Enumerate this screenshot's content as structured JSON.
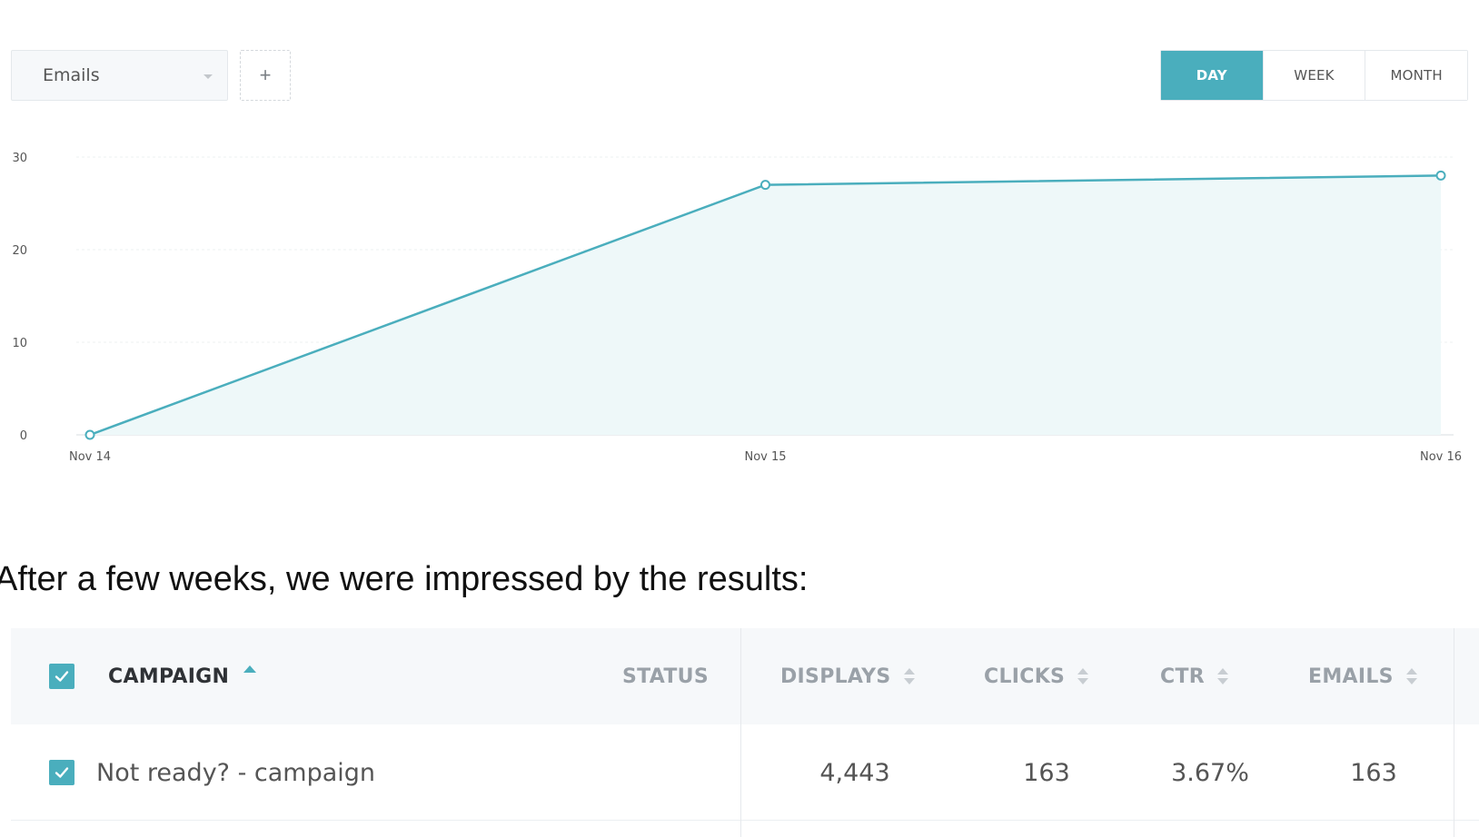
{
  "toolbar": {
    "metric_select_value": "Emails",
    "add_label": "+",
    "periods": [
      "DAY",
      "WEEK",
      "MONTH"
    ],
    "active_period": "DAY"
  },
  "chart_data": {
    "type": "area",
    "x": [
      "Nov 14",
      "Nov 15",
      "Nov 16"
    ],
    "series": [
      {
        "values": [
          0,
          27,
          28
        ]
      }
    ],
    "ylim": [
      0,
      30
    ],
    "yticks": [
      0,
      10,
      20,
      30
    ],
    "grid": true,
    "colors": {
      "line": "#4aaebd",
      "fill": "#eef8f9",
      "grid": "#eef0f2"
    }
  },
  "paragraph": "After a few weeks, we were impressed by the results:",
  "table": {
    "headers": {
      "campaign": "CAMPAIGN",
      "status": "STATUS",
      "displays": "DISPLAYS",
      "clicks": "CLICKS",
      "ctr": "CTR",
      "emails": "EMAILS"
    },
    "rows": [
      {
        "campaign": "Not ready? - campaign",
        "status": "",
        "displays": "4,443",
        "clicks": "163",
        "ctr": "3.67%",
        "emails": "163"
      }
    ]
  },
  "colors": {
    "accent": "#4aaebd"
  }
}
